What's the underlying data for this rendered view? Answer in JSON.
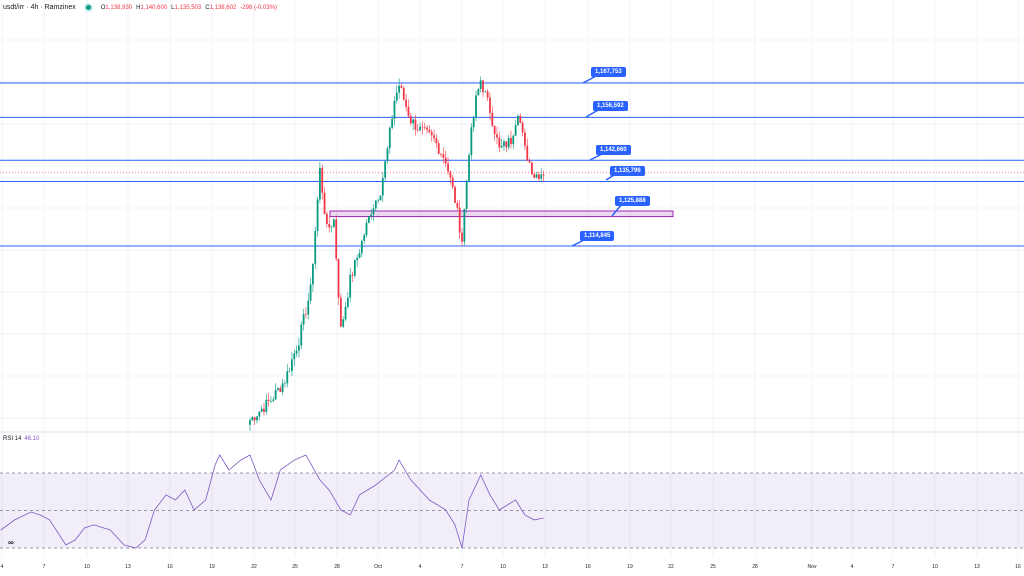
{
  "header": {
    "symbol": "usdt/irr · 4h · Ramzinex",
    "open_label": "O",
    "open": "1,138,930",
    "high_label": "H",
    "high": "1,140,600",
    "low_label": "L",
    "low": "1,135,503",
    "close_label": "C",
    "close": "1,138,602",
    "change": "-298 (-0.03%)"
  },
  "rsi_header": {
    "label": "RSI 14",
    "value": "46.10"
  },
  "logo_text": "TV",
  "colors": {
    "up": "#089981",
    "down": "#f23645",
    "level": "#2962ff",
    "zone": "#9c27b0",
    "rsi": "#7e57c2"
  },
  "chart_data": {
    "type": "candlestick",
    "title": "usdt/irr · 4h · Ramzinex",
    "x_tick_labels": [
      "4",
      "7",
      "10",
      "13",
      "16",
      "19",
      "22",
      "25",
      "28",
      "Oct",
      "4",
      "7",
      "10",
      "13",
      "16",
      "19",
      "22",
      "25",
      "28",
      "Nov",
      "4",
      "7",
      "10",
      "13",
      "16"
    ],
    "price_path": [
      [
        0,
        1058363
      ],
      [
        9,
        1064855
      ],
      [
        15,
        1071347
      ],
      [
        21,
        1084331
      ],
      [
        26,
        1100561
      ],
      [
        29,
        1129775
      ],
      [
        30,
        1139513
      ],
      [
        33,
        1120037
      ],
      [
        36,
        1123283
      ],
      [
        39,
        1087577
      ],
      [
        43,
        1103807
      ],
      [
        47,
        1113545
      ],
      [
        52,
        1126529
      ],
      [
        56,
        1133021
      ],
      [
        59,
        1146005
      ],
      [
        62,
        1162235
      ],
      [
        64,
        1167104
      ],
      [
        69,
        1155743
      ],
      [
        73,
        1152497
      ],
      [
        79,
        1149251
      ],
      [
        84,
        1142759
      ],
      [
        88,
        1129775
      ],
      [
        91,
        1116791
      ],
      [
        94,
        1146005
      ],
      [
        97,
        1162235
      ],
      [
        99,
        1168727
      ],
      [
        103,
        1158989
      ],
      [
        107,
        1146005
      ],
      [
        112,
        1149251
      ],
      [
        115,
        1158989
      ],
      [
        118,
        1146005
      ],
      [
        122,
        1137890
      ],
      [
        126,
        1138864
      ]
    ],
    "levels": [
      {
        "label": "1,167,753",
        "price": 1167753
      },
      {
        "label": "1,156,592",
        "price": 1156592
      },
      {
        "label": "1,142,660",
        "price": 1142660
      },
      {
        "label": "1,135,796",
        "price": 1135796
      },
      {
        "label": "1,114,845",
        "price": 1114845
      }
    ],
    "zone": {
      "label": "1,125,888",
      "price_low": 1124400,
      "price_high": 1126200
    },
    "current_price": 1138602,
    "rsi": {
      "period": 14,
      "upper": 70,
      "middle": 50,
      "lower": 30,
      "path": [
        [
          -107,
          39.6
        ],
        [
          -101,
          45
        ],
        [
          -94,
          49.2
        ],
        [
          -90,
          47.6
        ],
        [
          -86,
          45
        ],
        [
          -79,
          31.6
        ],
        [
          -75,
          34.3
        ],
        [
          -71,
          40.7
        ],
        [
          -67,
          42.3
        ],
        [
          -60,
          39.6
        ],
        [
          -54,
          31.6
        ],
        [
          -49,
          30
        ],
        [
          -45,
          34.3
        ],
        [
          -41,
          50.3
        ],
        [
          -36,
          58.3
        ],
        [
          -32,
          55.6
        ],
        [
          -28,
          60.9
        ],
        [
          -24,
          50.3
        ],
        [
          -19,
          55.6
        ],
        [
          -15,
          74.3
        ],
        [
          -13,
          79.6
        ],
        [
          -9,
          71.6
        ],
        [
          -4,
          76.9
        ],
        [
          0,
          79.6
        ],
        [
          4,
          66.3
        ],
        [
          9,
          55.6
        ],
        [
          13,
          71.6
        ],
        [
          19,
          76.9
        ],
        [
          24,
          79.6
        ],
        [
          30,
          66.3
        ],
        [
          34,
          60.9
        ],
        [
          39,
          50.3
        ],
        [
          43,
          47.6
        ],
        [
          47,
          58.3
        ],
        [
          54,
          63.6
        ],
        [
          62,
          71.6
        ],
        [
          64,
          76.9
        ],
        [
          69,
          66.3
        ],
        [
          77,
          55.6
        ],
        [
          84,
          50.3
        ],
        [
          88,
          42.3
        ],
        [
          91,
          30
        ],
        [
          94,
          55.6
        ],
        [
          99,
          68.9
        ],
        [
          103,
          58.3
        ],
        [
          107,
          50.3
        ],
        [
          114,
          55.6
        ],
        [
          118,
          47.6
        ],
        [
          122,
          45
        ],
        [
          126,
          46
        ]
      ]
    }
  }
}
